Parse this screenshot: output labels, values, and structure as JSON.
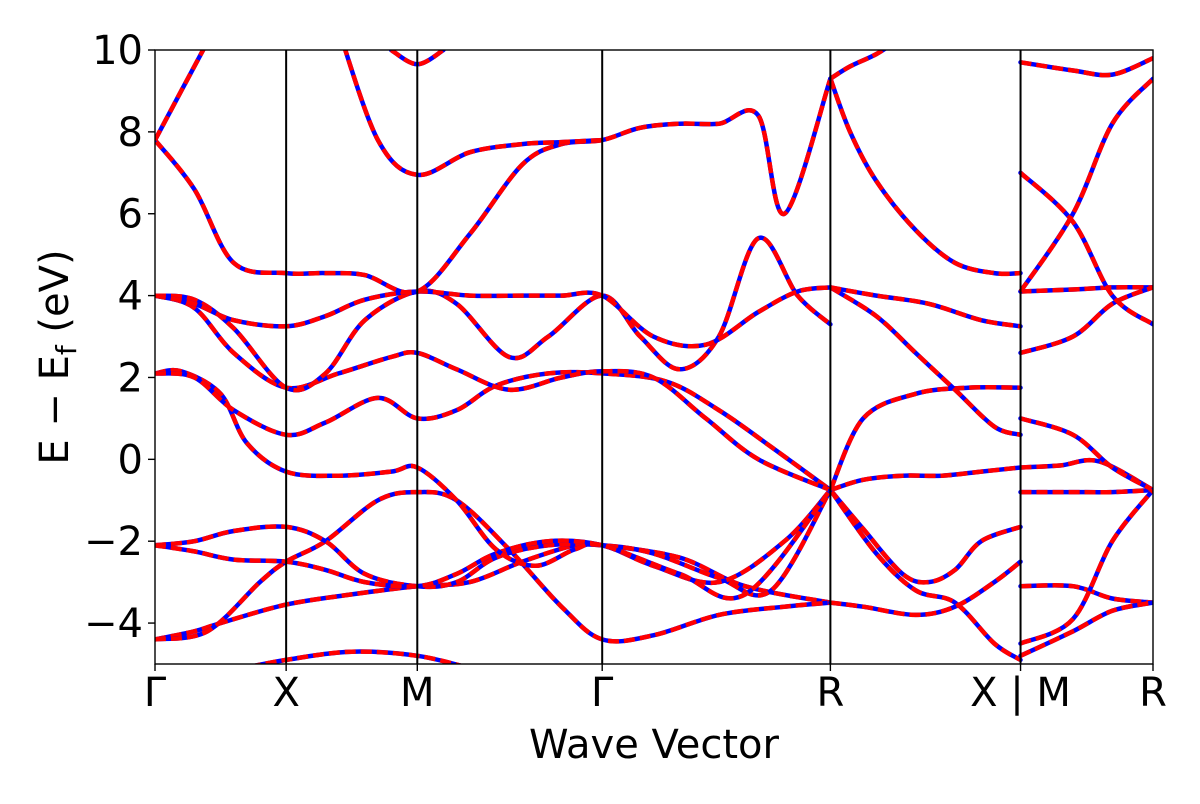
{
  "chart_data": {
    "type": "line",
    "title": "",
    "xlabel": "Wave Vector",
    "ylabel_parts": {
      "main": "E − E",
      "subscript": "f",
      "unit": " (eV)"
    },
    "ylim": [
      -5,
      10
    ],
    "yticks": [
      -4,
      -2,
      0,
      2,
      4,
      6,
      8,
      10
    ],
    "ytick_labels": [
      "−4",
      "−2",
      "0",
      "2",
      "4",
      "6",
      "8",
      "10"
    ],
    "xlim": [
      0,
      7.61
    ],
    "high_symmetry_points": [
      {
        "x": 0.0,
        "label": "Γ"
      },
      {
        "x": 1.0,
        "label": "X"
      },
      {
        "x": 2.0,
        "label": "M"
      },
      {
        "x": 3.41,
        "label": "Γ"
      },
      {
        "x": 5.15,
        "label": "R"
      },
      {
        "x": 6.6,
        "label": "X | M"
      },
      {
        "x": 7.61,
        "label": "R"
      }
    ],
    "grid": false,
    "legend": "none",
    "series_styles": [
      {
        "color": "#0000ff",
        "dash": "solid"
      },
      {
        "color": "#ff0000",
        "dash": "dashed"
      }
    ],
    "bands": [
      {
        "x": [
          0,
          0.3,
          0.5,
          1.0,
          1.5,
          2.0,
          2.4,
          2.8,
          3.2,
          3.41,
          4.0,
          4.5,
          5.15
        ],
        "y": [
          -4.4,
          -4.2,
          -4.0,
          -3.55,
          -3.3,
          -3.1,
          -3.0,
          -2.5,
          -2.1,
          -2.1,
          -2.4,
          -3.1,
          -3.5
        ]
      },
      {
        "x": [
          0,
          0.4,
          0.8,
          1.0,
          1.3,
          1.7,
          2.0,
          2.3,
          2.7,
          3.1,
          3.41,
          3.8,
          4.3,
          4.8,
          5.15
        ],
        "y": [
          -4.4,
          -4.2,
          -3.0,
          -2.5,
          -2.0,
          -1.0,
          -0.8,
          -1.0,
          -2.2,
          -3.6,
          -4.4,
          -4.3,
          -3.8,
          -3.6,
          -3.5
        ]
      },
      {
        "x": [
          0,
          0.3,
          0.6,
          1.0,
          1.3,
          1.6,
          2.0,
          2.3,
          2.6,
          3.0,
          3.41,
          3.8,
          4.3,
          4.7,
          5.15
        ],
        "y": [
          -2.1,
          -2.0,
          -1.75,
          -1.65,
          -2.0,
          -2.8,
          -3.1,
          -3.0,
          -2.4,
          -2.1,
          -2.1,
          -2.3,
          -2.9,
          -3.2,
          -0.75
        ]
      },
      {
        "x": [
          0,
          0.3,
          0.6,
          1.0,
          1.3,
          1.6,
          2.0,
          2.3,
          2.6,
          3.0,
          3.41,
          3.8,
          4.3,
          4.8,
          5.15
        ],
        "y": [
          -2.1,
          -2.25,
          -2.45,
          -2.5,
          -2.7,
          -3.0,
          -3.1,
          -2.8,
          -2.3,
          -2.0,
          -2.1,
          -2.6,
          -3.0,
          -2.0,
          -0.75
        ]
      },
      {
        "x": [
          0,
          0.2,
          0.5,
          0.7,
          1.0,
          1.4,
          1.8,
          2.0,
          2.3,
          2.6,
          2.9,
          3.2,
          3.41,
          4.0,
          4.5,
          5.15
        ],
        "y": [
          2.1,
          2.15,
          1.6,
          0.4,
          -0.3,
          -0.4,
          -0.3,
          -0.2,
          -1.0,
          -2.2,
          -2.6,
          -2.2,
          -2.1,
          -2.8,
          -3.3,
          -0.75
        ]
      },
      {
        "x": [
          0,
          0.3,
          0.6,
          1.0,
          1.3,
          1.7,
          2.0,
          2.3,
          2.6,
          3.0,
          3.41,
          3.9,
          4.3,
          4.7,
          5.15
        ],
        "y": [
          2.1,
          2.0,
          1.2,
          0.6,
          0.9,
          1.5,
          1.0,
          1.2,
          1.8,
          2.1,
          2.1,
          1.9,
          1.2,
          0.3,
          -0.75
        ]
      },
      {
        "x": [
          0,
          0.3,
          0.6,
          1.0,
          1.4,
          1.8,
          2.0,
          2.3,
          2.7,
          3.1,
          3.41,
          3.8,
          4.2,
          4.6,
          5.15
        ],
        "y": [
          4.0,
          3.7,
          2.6,
          1.75,
          2.1,
          2.5,
          2.6,
          2.2,
          1.7,
          2.0,
          2.15,
          2.0,
          1.0,
          0.0,
          -0.75
        ]
      },
      {
        "x": [
          0,
          0.3,
          0.6,
          1.0,
          1.3,
          1.6,
          2.0,
          2.3,
          2.7,
          3.0,
          3.41,
          3.7,
          4.0,
          4.3,
          4.6,
          4.9,
          5.15
        ],
        "y": [
          4.0,
          3.9,
          3.2,
          1.75,
          2.1,
          3.4,
          4.1,
          3.8,
          2.5,
          3.0,
          4.0,
          3.0,
          2.2,
          3.0,
          5.4,
          4.0,
          3.3
        ]
      },
      {
        "x": [
          0,
          0.3,
          0.6,
          1.0,
          1.3,
          1.6,
          2.0,
          2.4,
          2.8,
          3.1,
          3.41,
          3.8,
          4.2,
          4.6,
          4.9,
          5.15
        ],
        "y": [
          4.0,
          3.8,
          3.4,
          3.25,
          3.5,
          3.9,
          4.1,
          4.0,
          4.0,
          4.0,
          4.0,
          3.0,
          2.8,
          3.6,
          4.1,
          4.2
        ]
      },
      {
        "x": [
          0,
          0.3,
          0.6,
          1.0,
          1.3,
          1.6,
          2.0,
          2.4,
          2.8,
          3.1,
          3.41,
          3.7,
          4.0,
          4.3,
          4.6,
          4.8,
          5.15
        ],
        "y": [
          7.8,
          6.6,
          4.8,
          4.55,
          4.55,
          4.5,
          4.1,
          5.5,
          7.2,
          7.7,
          7.8,
          8.1,
          8.2,
          8.2,
          8.4,
          6.0,
          9.3
        ]
      },
      {
        "x": [
          0,
          0.2,
          0.4
        ],
        "y": [
          7.8,
          9.0,
          10.2
        ]
      },
      {
        "x": [
          1.4,
          1.7,
          2.0,
          2.4,
          2.8,
          3.1,
          3.41
        ],
        "y": [
          10.5,
          7.8,
          6.95,
          7.5,
          7.7,
          7.75,
          7.8
        ]
      },
      {
        "x": [
          1.8,
          2.0,
          2.2
        ],
        "y": [
          10.0,
          9.65,
          10.0
        ]
      },
      {
        "x": [
          0,
          0.5,
          1.0,
          1.5,
          2.0,
          2.4
        ],
        "y": [
          -5.4,
          -5.2,
          -4.9,
          -4.7,
          -4.8,
          -5.1
        ]
      },
      {
        "x": [
          5.15,
          5.4,
          5.7,
          6.0,
          6.3,
          6.6
        ],
        "y": [
          -0.75,
          -0.5,
          -0.4,
          -0.4,
          -0.3,
          -0.2
        ]
      },
      {
        "x": [
          5.15,
          5.4,
          5.7,
          5.9,
          6.1,
          6.3,
          6.6
        ],
        "y": [
          -0.75,
          -1.7,
          -2.8,
          -3.0,
          -2.7,
          -2.0,
          -1.65
        ]
      },
      {
        "x": [
          5.15,
          5.5,
          5.8,
          6.1,
          6.4,
          6.6
        ],
        "y": [
          -0.75,
          -2.3,
          -3.2,
          -3.5,
          -4.5,
          -4.9
        ]
      },
      {
        "x": [
          5.15,
          5.4,
          5.8,
          6.1,
          6.4,
          6.6
        ],
        "y": [
          -3.5,
          -3.6,
          -3.8,
          -3.6,
          -3.0,
          -2.5
        ]
      },
      {
        "x": [
          5.15,
          5.4,
          5.8,
          6.2,
          6.6
        ],
        "y": [
          -0.75,
          1.0,
          1.6,
          1.75,
          1.75
        ]
      },
      {
        "x": [
          5.15,
          5.5,
          5.8,
          6.1,
          6.4,
          6.6
        ],
        "y": [
          4.2,
          3.5,
          2.6,
          1.7,
          0.8,
          0.6
        ]
      },
      {
        "x": [
          5.15,
          5.5,
          5.9,
          6.3,
          6.6
        ],
        "y": [
          4.2,
          4.0,
          3.8,
          3.4,
          3.25
        ]
      },
      {
        "x": [
          5.15,
          5.3,
          5.5,
          5.8,
          6.1,
          6.4,
          6.6
        ],
        "y": [
          9.3,
          8.0,
          6.8,
          5.6,
          4.8,
          4.55,
          4.55
        ]
      },
      {
        "x": [
          5.15,
          5.3,
          5.5,
          5.7,
          6.0
        ],
        "y": [
          9.3,
          9.6,
          9.9,
          10.3,
          10.8
        ]
      },
      {
        "x": [
          6.6,
          6.9,
          7.2,
          7.61
        ],
        "y": [
          -0.2,
          -0.15,
          -0.05,
          -0.75
        ]
      },
      {
        "x": [
          6.6,
          7.0,
          7.3,
          7.61
        ],
        "y": [
          -0.8,
          -0.8,
          -0.8,
          -0.75
        ]
      },
      {
        "x": [
          6.6,
          7.0,
          7.3,
          7.61
        ],
        "y": [
          1.0,
          0.6,
          -0.2,
          -0.75
        ]
      },
      {
        "x": [
          6.6,
          7.0,
          7.3,
          7.61
        ],
        "y": [
          -3.1,
          -3.1,
          -3.4,
          -3.5
        ]
      },
      {
        "x": [
          6.6,
          7.0,
          7.3,
          7.61
        ],
        "y": [
          -4.5,
          -3.9,
          -2.0,
          -0.75
        ]
      },
      {
        "x": [
          6.6,
          7.0,
          7.3,
          7.61
        ],
        "y": [
          -4.8,
          -4.2,
          -3.7,
          -3.5
        ]
      },
      {
        "x": [
          6.6,
          7.0,
          7.3,
          7.61
        ],
        "y": [
          4.1,
          4.15,
          4.2,
          4.2
        ]
      },
      {
        "x": [
          6.6,
          7.0,
          7.3,
          7.61
        ],
        "y": [
          2.6,
          3.0,
          3.8,
          4.2
        ]
      },
      {
        "x": [
          6.6,
          7.0,
          7.3,
          7.61
        ],
        "y": [
          7.0,
          5.8,
          4.0,
          3.3
        ]
      },
      {
        "x": [
          6.6,
          7.0,
          7.3,
          7.61
        ],
        "y": [
          4.1,
          6.0,
          8.2,
          9.3
        ]
      },
      {
        "x": [
          6.6,
          7.0,
          7.3,
          7.61
        ],
        "y": [
          9.7,
          9.5,
          9.4,
          9.8
        ]
      }
    ]
  }
}
